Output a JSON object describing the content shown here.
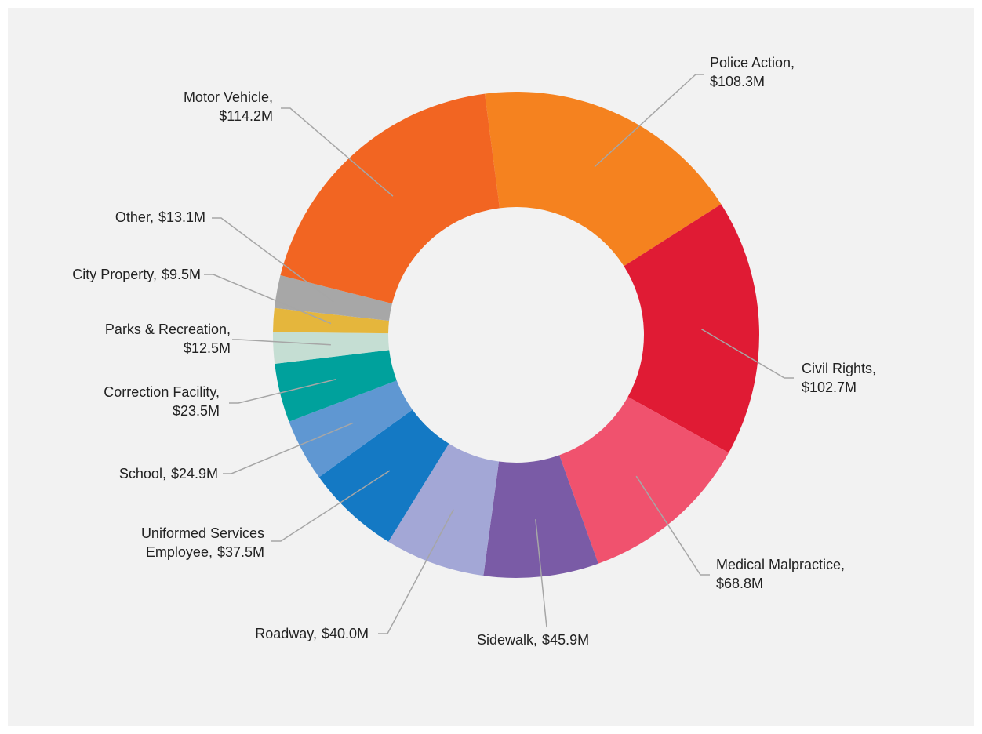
{
  "chart_data": {
    "type": "pie",
    "donut": true,
    "categories": [
      "Police Action,",
      "Civil Rights,",
      "Medical Malpractice,",
      "Sidewalk,",
      "Roadway,",
      "Uniformed Services Employee,",
      "School,",
      "Correction Facility,",
      "Parks & Recreation,",
      "City Property,",
      "Other,",
      "Motor Vehicle,"
    ],
    "values": [
      108.3,
      102.7,
      68.8,
      45.9,
      40.0,
      37.5,
      24.9,
      23.5,
      12.5,
      9.5,
      13.1,
      114.2
    ],
    "value_labels": [
      "$108.3M",
      "$102.7M",
      "$68.8M",
      "$45.9M",
      "$40.0M",
      "$37.5M",
      "$24.9M",
      "$23.5M",
      "$12.5M",
      "$9.5M",
      "$13.1M",
      "$114.2M"
    ],
    "colors": [
      "#f5821f",
      "#e01b34",
      "#f0526e",
      "#7a5ba6",
      "#a3a7d6",
      "#1479c4",
      "#5f97d2",
      "#00a19c",
      "#c5ded3",
      "#e5b63c",
      "#a7a7a7",
      "#f26522"
    ]
  }
}
